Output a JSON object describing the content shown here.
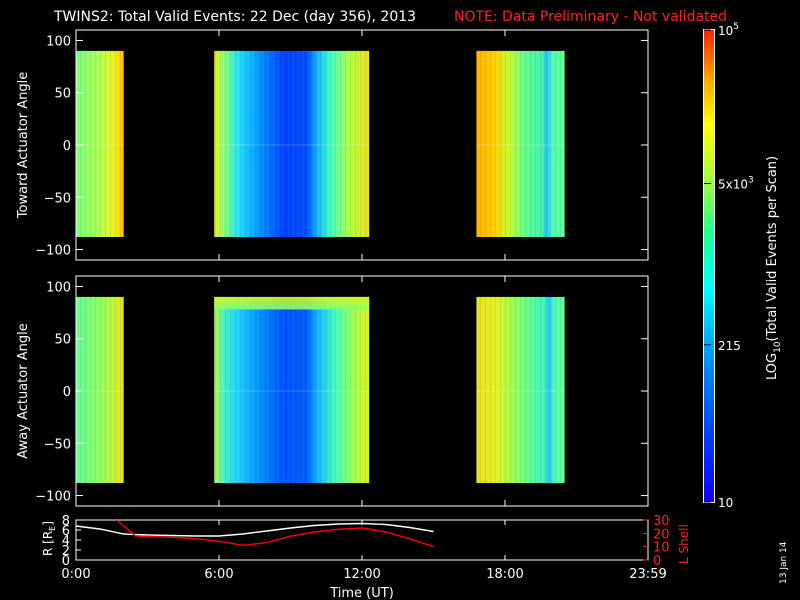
{
  "title": {
    "main": "TWINS2: Total Valid Events: 22 Dec (day 356), 2013",
    "note": "NOTE: Data Preliminary - Not validated",
    "note_color": "#ff2020"
  },
  "side_label": "13 Jan 14",
  "chart_data": [
    {
      "type": "heatmap",
      "panel": "toward",
      "ylabel": "Toward Actuator Angle",
      "ylim": [
        -110,
        110
      ],
      "yticks": [
        "100",
        "50",
        "0",
        "−50",
        "−100"
      ],
      "ytick_values": [
        100,
        50,
        0,
        -50,
        -100
      ],
      "x_unit": "hours UT",
      "xlim": [
        0,
        24
      ],
      "angle_range": [
        -88,
        90
      ],
      "data_segments": [
        {
          "start": 0.0,
          "end": 2.0,
          "level": "yellow-green, brighter toward end"
        },
        {
          "start": 5.8,
          "end": 12.3,
          "level": "yellow-cyan edges, blue core 7.7-10.2"
        },
        {
          "start": 16.8,
          "end": 20.5,
          "level": "orange-yellow fading to green"
        }
      ]
    },
    {
      "type": "heatmap",
      "panel": "away",
      "ylabel": "Away Actuator Angle",
      "ylim": [
        -110,
        110
      ],
      "yticks": [
        "100",
        "50",
        "0",
        "−50",
        "−100"
      ],
      "ytick_values": [
        100,
        50,
        0,
        -50,
        -100
      ],
      "x_unit": "hours UT",
      "xlim": [
        0,
        24
      ],
      "angle_range": [
        -88,
        90
      ],
      "data_segments": [
        {
          "start": 0.0,
          "end": 2.0,
          "level": "green-yellow"
        },
        {
          "start": 5.8,
          "end": 12.3,
          "level": "cyan-blue, yellow top band"
        },
        {
          "start": 16.8,
          "end": 20.5,
          "level": "yellow fading to green"
        }
      ]
    },
    {
      "type": "line",
      "panel": "orbit",
      "ylabel": "R [R",
      "ylabel_sub": "E",
      "ylabel_end": "]",
      "ylim": [
        0,
        8
      ],
      "yticks": [
        "8",
        "6",
        "4",
        "2",
        "0"
      ],
      "ytick_values": [
        8,
        6,
        4,
        2,
        0
      ],
      "ylabel_right": "L Shell",
      "ylim_right": [
        0,
        30
      ],
      "yticks_right": [
        "30",
        "20",
        "10",
        "0"
      ],
      "ytick_values_right": [
        30,
        20,
        10,
        0
      ],
      "xlabel": "Time (UT)",
      "xlim": [
        0,
        24
      ],
      "xticks": [
        "0:00",
        "6:00",
        "12:00",
        "18:00",
        "23:59"
      ],
      "xtick_values": [
        0,
        6,
        12,
        18,
        24
      ],
      "series": [
        {
          "color": "#ffffff",
          "axis": "left",
          "x": [
            0.0,
            1.0,
            2.0,
            3.0,
            4.0,
            5.0,
            6.0,
            7.0,
            8.0,
            9.0,
            10.0,
            11.0,
            12.0,
            13.0,
            14.0,
            15.0
          ],
          "y": [
            6.8,
            6.2,
            5.2,
            5.0,
            4.9,
            4.8,
            4.8,
            5.2,
            5.8,
            6.4,
            6.9,
            7.2,
            7.3,
            7.1,
            6.5,
            5.7
          ]
        },
        {
          "color": "#ff0000",
          "axis": "right",
          "x": [
            1.7,
            2.5,
            3.5,
            5.0,
            6.0,
            7.0,
            8.0,
            9.0,
            10.0,
            11.0,
            12.0,
            13.0,
            14.0,
            15.0
          ],
          "y": [
            30,
            18,
            17.5,
            16,
            14,
            11,
            13,
            18,
            21,
            23,
            24,
            21,
            16,
            10
          ]
        }
      ]
    }
  ],
  "colorbar": {
    "label": "LOG",
    "label_sub": "10",
    "label_rest": "(Total Valid  Events per Scan)",
    "ticks": [
      {
        "label": "10",
        "sup": "5",
        "value": 100000
      },
      {
        "label": "5x10",
        "sup": "3",
        "value": 5000
      },
      {
        "label": "215",
        "sup": "",
        "value": 215
      },
      {
        "label": "10",
        "sup": "",
        "value": 10
      }
    ],
    "colors": [
      "#1000ff",
      "#0040ff",
      "#0090ff",
      "#00ffff",
      "#20ff90",
      "#a0ff40",
      "#ffff00",
      "#ffa000",
      "#ff2000"
    ]
  }
}
